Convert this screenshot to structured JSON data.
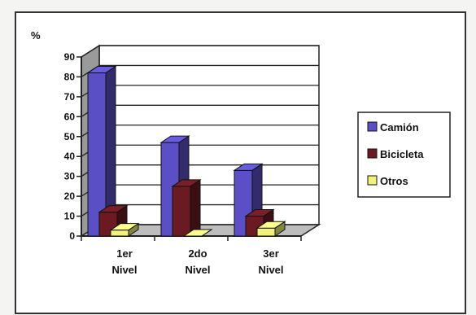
{
  "chart_data": {
    "type": "bar",
    "style": "3d-clustered-column",
    "y_unit_label": "%",
    "categories": [
      [
        "1er",
        "Nivel"
      ],
      [
        "2do",
        "Nivel"
      ],
      [
        "3er",
        "Nivel"
      ]
    ],
    "series": [
      {
        "name": "Camión",
        "values": [
          82,
          47,
          33
        ],
        "color": "#5a4fc4"
      },
      {
        "name": "Bicicleta",
        "values": [
          12,
          25,
          10
        ],
        "color": "#6b1a22"
      },
      {
        "name": "Otros",
        "values": [
          3,
          0,
          4
        ],
        "color": "#f2f27a"
      }
    ],
    "ylim": [
      0,
      90
    ],
    "yticks": [
      0,
      10,
      20,
      30,
      40,
      50,
      60,
      70,
      80,
      90
    ],
    "grid": true,
    "legend_position": "right"
  }
}
